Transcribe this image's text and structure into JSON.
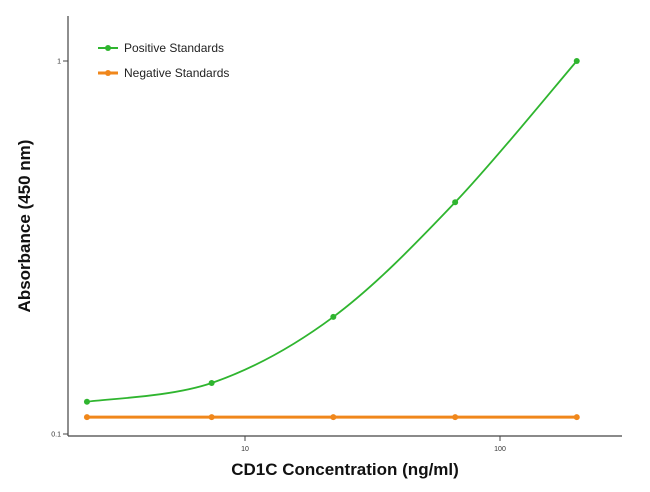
{
  "chart_data": {
    "type": "line",
    "xscale": "log",
    "yscale": "log",
    "xlabel": "CD1C Concentration (ng/ml)",
    "ylabel": "Absorbance (450 nm)",
    "xlim": [
      2.2,
      330
    ],
    "ylim": [
      0.1,
      1.15
    ],
    "x_ticks": [
      10,
      100
    ],
    "x_tick_labels": [
      "10",
      "100"
    ],
    "y_ticks": [
      0.1,
      1
    ],
    "y_tick_labels": [
      "0.1",
      "1"
    ],
    "legend_position": "top-left",
    "series": [
      {
        "name": "Positive Standards",
        "color": "#2fb52f",
        "x": [
          2.4,
          7.4,
          22.2,
          66.7,
          200
        ],
        "y": [
          0.122,
          0.137,
          0.206,
          0.418,
          1.0
        ],
        "smooth": true
      },
      {
        "name": "Negative Standards",
        "color": "#f0871b",
        "x": [
          2.4,
          7.4,
          22.2,
          66.7,
          200
        ],
        "y": [
          0.111,
          0.111,
          0.111,
          0.111,
          0.111
        ],
        "smooth": false
      }
    ]
  }
}
